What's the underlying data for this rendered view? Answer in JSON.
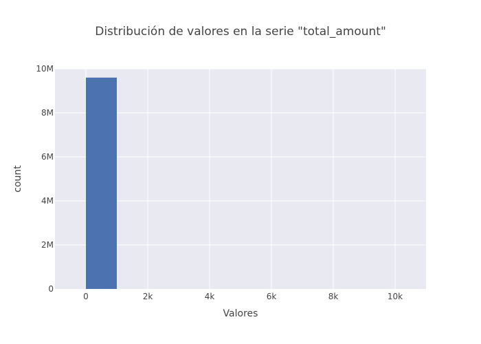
{
  "chart_data": {
    "type": "bar",
    "title": "Distribución de valores en la serie \"total_amount\"",
    "xlabel": "Valores",
    "ylabel": "count",
    "xlim": [
      -1000,
      11000
    ],
    "ylim": [
      0,
      10000000
    ],
    "x_ticks": [
      {
        "value": 0,
        "label": "0"
      },
      {
        "value": 2000,
        "label": "2k"
      },
      {
        "value": 4000,
        "label": "4k"
      },
      {
        "value": 6000,
        "label": "6k"
      },
      {
        "value": 8000,
        "label": "8k"
      },
      {
        "value": 10000,
        "label": "10k"
      }
    ],
    "y_ticks": [
      {
        "value": 0,
        "label": "0"
      },
      {
        "value": 2000000,
        "label": "2M"
      },
      {
        "value": 4000000,
        "label": "4M"
      },
      {
        "value": 6000000,
        "label": "6M"
      },
      {
        "value": 8000000,
        "label": "8M"
      },
      {
        "value": 10000000,
        "label": "10M"
      }
    ],
    "bins": [
      {
        "start": 0,
        "end": 1000,
        "count": 9600000
      }
    ],
    "grid": true,
    "legend": "none",
    "colors": {
      "bar": "#4c72b0",
      "plot_bg": "#e9e9f1",
      "grid": "#ffffff"
    }
  }
}
